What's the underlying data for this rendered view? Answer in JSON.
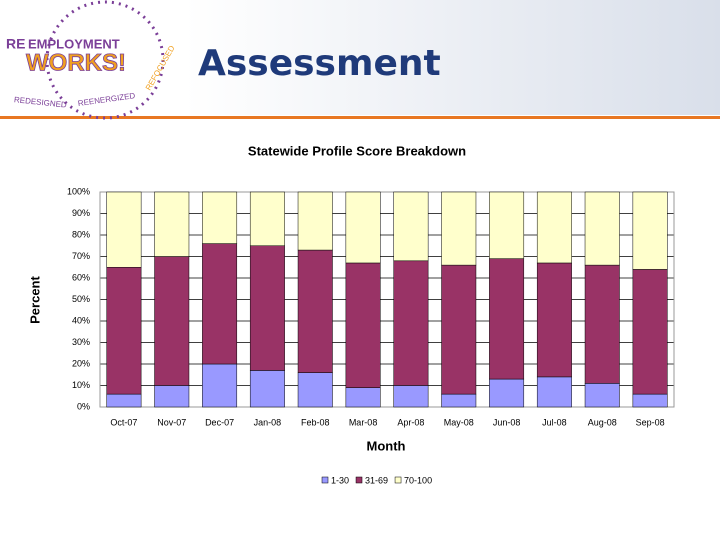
{
  "header": {
    "title": "Assessment",
    "logo": {
      "prefix": "RE",
      "line1": "EMPLOYMENT",
      "line2": "WORKS!",
      "arc1": "REDESIGNED",
      "arc2": "REENERGIZED",
      "arc3": "REFOCUSED"
    }
  },
  "chart_data": {
    "type": "stacked_bar",
    "title": "Statewide Profile Score Breakdown",
    "x_label": "Month",
    "y_label": "Percent",
    "categories": [
      "Oct-07",
      "Nov-07",
      "Dec-07",
      "Jan-08",
      "Feb-08",
      "Mar-08",
      "Apr-08",
      "May-08",
      "Jun-08",
      "Jul-08",
      "Aug-08",
      "Sep-08"
    ],
    "series": [
      {
        "name": "1-30",
        "color": "#9999ff",
        "values": [
          6,
          10,
          20,
          17,
          16,
          9,
          10,
          6,
          13,
          14,
          11,
          6
        ]
      },
      {
        "name": "31-69",
        "color": "#993366",
        "values": [
          59,
          60,
          56,
          58,
          57,
          58,
          58,
          60,
          56,
          53,
          55,
          58
        ]
      },
      {
        "name": "70-100",
        "color": "#ffffcc",
        "values": [
          35,
          30,
          24,
          25,
          27,
          33,
          32,
          34,
          31,
          33,
          34,
          36
        ]
      }
    ],
    "ylim": [
      0,
      100
    ],
    "yticks": [
      {
        "value": 0,
        "label": "0%"
      },
      {
        "value": 10,
        "label": "10%"
      },
      {
        "value": 20,
        "label": "20%"
      },
      {
        "value": 30,
        "label": "30%"
      },
      {
        "value": 40,
        "label": "40%"
      },
      {
        "value": 50,
        "label": "50%"
      },
      {
        "value": 60,
        "label": "60%"
      },
      {
        "value": 70,
        "label": "70%"
      },
      {
        "value": 80,
        "label": "80%"
      },
      {
        "value": 90,
        "label": "90%"
      },
      {
        "value": 100,
        "label": "100%"
      }
    ],
    "grid": true,
    "legend": "bottom"
  }
}
